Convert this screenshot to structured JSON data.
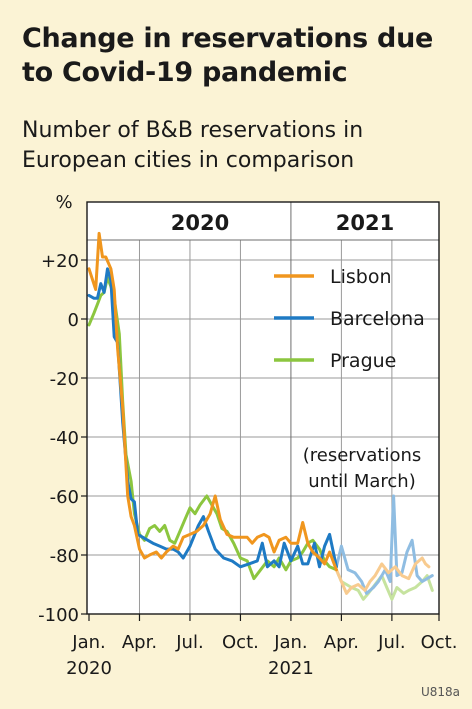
{
  "title": "Change in reservations due to Covid-19 pandemic",
  "subtitle": "Number of B&B reservations in European cities in comparison",
  "stamp": "U818a",
  "colors": {
    "background": "#fbf3d5",
    "plot_background": "#ffffff",
    "grid": "#9a9a9a",
    "Lisbon": "#f0961e",
    "Barcelona": "#1e7ac4",
    "Prague": "#8cc63f"
  },
  "chart_data": {
    "type": "line",
    "ylabel": "%",
    "ylim": [
      -100,
      30
    ],
    "yticks": [
      -100,
      -80,
      -60,
      -40,
      -20,
      0,
      20
    ],
    "ytick_labels": [
      "-100",
      "-80",
      "-60",
      "-40",
      "-20",
      "0",
      "+20"
    ],
    "xlim": [
      0,
      20.8
    ],
    "xticks": [
      {
        "x": 0,
        "label": "Jan."
      },
      {
        "x": 3,
        "label": "Apr."
      },
      {
        "x": 6,
        "label": "Jul."
      },
      {
        "x": 9,
        "label": "Oct."
      },
      {
        "x": 12,
        "label": "Jan."
      },
      {
        "x": 15,
        "label": "Apr."
      },
      {
        "x": 18,
        "label": "Jul."
      },
      {
        "x": 21,
        "label": "Oct."
      }
    ],
    "year_labels": [
      {
        "x": 0,
        "label": "2020"
      },
      {
        "x": 12,
        "label": "2021"
      }
    ],
    "periods": [
      {
        "label": "2020",
        "from": 0,
        "to": 12
      },
      {
        "label": "2021",
        "from": 12,
        "to": 20.8
      }
    ],
    "grid": true,
    "legend_position": "top-right",
    "annotation": "(reservations until March)",
    "faded_from_x": 14.7,
    "series": [
      {
        "name": "Lisbon",
        "points": [
          [
            0,
            17
          ],
          [
            0.4,
            10
          ],
          [
            0.6,
            29
          ],
          [
            0.8,
            21
          ],
          [
            1,
            21
          ],
          [
            1.3,
            17
          ],
          [
            1.5,
            10
          ],
          [
            1.7,
            -10
          ],
          [
            2,
            -30
          ],
          [
            2.3,
            -60
          ],
          [
            2.5,
            -67
          ],
          [
            2.7,
            -70
          ],
          [
            3,
            -78
          ],
          [
            3.3,
            -81
          ],
          [
            3.6,
            -80
          ],
          [
            4,
            -79
          ],
          [
            4.3,
            -81
          ],
          [
            4.6,
            -79
          ],
          [
            5,
            -77
          ],
          [
            5.3,
            -78
          ],
          [
            5.6,
            -74
          ],
          [
            6,
            -73
          ],
          [
            6.4,
            -72
          ],
          [
            6.8,
            -70
          ],
          [
            7.2,
            -66
          ],
          [
            7.5,
            -60
          ],
          [
            7.8,
            -68
          ],
          [
            8.2,
            -73
          ],
          [
            8.6,
            -74
          ],
          [
            9,
            -74
          ],
          [
            9.4,
            -74
          ],
          [
            9.7,
            -76
          ],
          [
            10,
            -74
          ],
          [
            10.4,
            -73
          ],
          [
            10.7,
            -74
          ],
          [
            11,
            -79
          ],
          [
            11.3,
            -75
          ],
          [
            11.7,
            -74
          ],
          [
            12,
            -76
          ],
          [
            12.4,
            -76
          ],
          [
            12.7,
            -69
          ],
          [
            13,
            -76
          ],
          [
            13.3,
            -79
          ],
          [
            13.7,
            -81
          ],
          [
            14,
            -83
          ],
          [
            14.3,
            -79
          ],
          [
            14.7,
            -85
          ],
          [
            15,
            -89
          ],
          [
            15.3,
            -93
          ],
          [
            15.6,
            -91
          ],
          [
            16,
            -90
          ],
          [
            16.4,
            -92
          ],
          [
            16.7,
            -89
          ],
          [
            17,
            -87
          ],
          [
            17.4,
            -83
          ],
          [
            17.8,
            -86
          ],
          [
            18.2,
            -84
          ],
          [
            18.6,
            -87
          ],
          [
            19,
            -88
          ],
          [
            19.4,
            -83
          ],
          [
            19.8,
            -81
          ],
          [
            20,
            -83
          ],
          [
            20.2,
            -84
          ]
        ]
      },
      {
        "name": "Barcelona",
        "points": [
          [
            0,
            8
          ],
          [
            0.3,
            7
          ],
          [
            0.5,
            7
          ],
          [
            0.7,
            12
          ],
          [
            0.9,
            9
          ],
          [
            1.1,
            17
          ],
          [
            1.3,
            13
          ],
          [
            1.5,
            -6
          ],
          [
            1.7,
            -8
          ],
          [
            2,
            -35
          ],
          [
            2.3,
            -55
          ],
          [
            2.5,
            -61
          ],
          [
            2.7,
            -62
          ],
          [
            2.9,
            -73
          ],
          [
            3.2,
            -74
          ],
          [
            3.5,
            -75
          ],
          [
            3.8,
            -76
          ],
          [
            4.2,
            -77
          ],
          [
            4.6,
            -78
          ],
          [
            5,
            -78
          ],
          [
            5.3,
            -79
          ],
          [
            5.6,
            -81
          ],
          [
            6,
            -77
          ],
          [
            6.5,
            -70
          ],
          [
            6.8,
            -67
          ],
          [
            7.1,
            -72
          ],
          [
            7.5,
            -78
          ],
          [
            8,
            -81
          ],
          [
            8.5,
            -82
          ],
          [
            9,
            -84
          ],
          [
            9.5,
            -83
          ],
          [
            10,
            -82
          ],
          [
            10.3,
            -76
          ],
          [
            10.6,
            -84
          ],
          [
            11,
            -82
          ],
          [
            11.3,
            -84
          ],
          [
            11.6,
            -76
          ],
          [
            12,
            -82
          ],
          [
            12.4,
            -77
          ],
          [
            12.7,
            -83
          ],
          [
            13,
            -83
          ],
          [
            13.4,
            -76
          ],
          [
            13.7,
            -84
          ],
          [
            14,
            -77
          ],
          [
            14.3,
            -73
          ],
          [
            14.7,
            -84
          ],
          [
            15,
            -77
          ],
          [
            15.4,
            -85
          ],
          [
            15.8,
            -86
          ],
          [
            16.2,
            -89
          ],
          [
            16.5,
            -93
          ],
          [
            16.9,
            -91
          ],
          [
            17.2,
            -89
          ],
          [
            17.6,
            -85
          ],
          [
            17.9,
            -89
          ],
          [
            18.1,
            -60
          ],
          [
            18.3,
            -87
          ],
          [
            18.6,
            -86
          ],
          [
            18.9,
            -79
          ],
          [
            19.2,
            -75
          ],
          [
            19.5,
            -87
          ],
          [
            19.8,
            -89
          ],
          [
            20.1,
            -88
          ],
          [
            20.4,
            -87
          ]
        ]
      },
      {
        "name": "Prague",
        "points": [
          [
            0,
            -2
          ],
          [
            0.3,
            2
          ],
          [
            0.5,
            5
          ],
          [
            0.7,
            8
          ],
          [
            0.9,
            9
          ],
          [
            1.1,
            14
          ],
          [
            1.3,
            11
          ],
          [
            1.5,
            7
          ],
          [
            1.8,
            -5
          ],
          [
            2,
            -28
          ],
          [
            2.2,
            -46
          ],
          [
            2.5,
            -55
          ],
          [
            2.7,
            -66
          ],
          [
            3,
            -73
          ],
          [
            3.3,
            -75
          ],
          [
            3.6,
            -71
          ],
          [
            3.9,
            -70
          ],
          [
            4.2,
            -72
          ],
          [
            4.5,
            -70
          ],
          [
            4.8,
            -75
          ],
          [
            5.1,
            -76
          ],
          [
            5.4,
            -72
          ],
          [
            5.7,
            -68
          ],
          [
            6,
            -64
          ],
          [
            6.3,
            -66
          ],
          [
            6.6,
            -63
          ],
          [
            7,
            -60
          ],
          [
            7.3,
            -63
          ],
          [
            7.6,
            -66
          ],
          [
            7.9,
            -71
          ],
          [
            8.2,
            -72
          ],
          [
            8.6,
            -76
          ],
          [
            9,
            -81
          ],
          [
            9.4,
            -82
          ],
          [
            9.8,
            -88
          ],
          [
            10.2,
            -85
          ],
          [
            10.6,
            -82
          ],
          [
            11,
            -84
          ],
          [
            11.3,
            -81
          ],
          [
            11.7,
            -85
          ],
          [
            12,
            -82
          ],
          [
            12.4,
            -81
          ],
          [
            12.7,
            -79
          ],
          [
            13,
            -76
          ],
          [
            13.3,
            -75
          ],
          [
            13.7,
            -78
          ],
          [
            14,
            -82
          ],
          [
            14.3,
            -84
          ],
          [
            14.7,
            -85
          ],
          [
            15,
            -89
          ],
          [
            15.3,
            -90
          ],
          [
            15.6,
            -91
          ],
          [
            16,
            -92
          ],
          [
            16.3,
            -95
          ],
          [
            16.6,
            -93
          ],
          [
            17,
            -90
          ],
          [
            17.4,
            -87
          ],
          [
            17.7,
            -91
          ],
          [
            18,
            -95
          ],
          [
            18.3,
            -91
          ],
          [
            18.7,
            -93
          ],
          [
            19,
            -92
          ],
          [
            19.4,
            -91
          ],
          [
            19.8,
            -89
          ],
          [
            20.1,
            -87
          ],
          [
            20.4,
            -92
          ]
        ]
      }
    ]
  }
}
